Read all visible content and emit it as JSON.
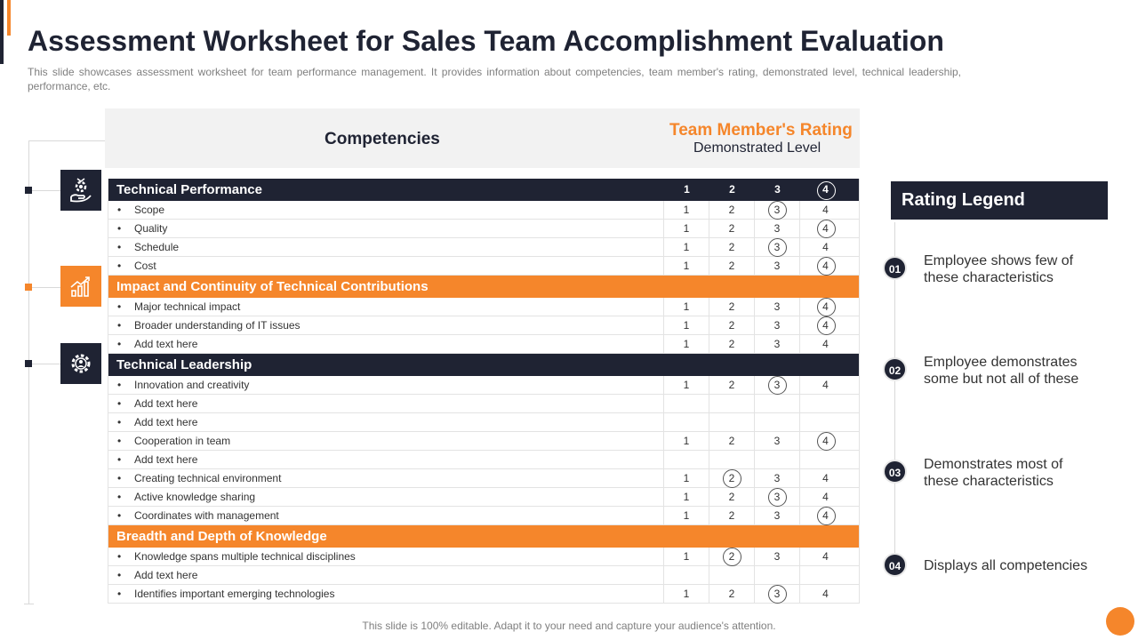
{
  "title": "Assessment Worksheet for Sales Team Accomplishment Evaluation",
  "subtitle": "This slide showcases assessment worksheet for team performance management. It provides information about competencies, team member's rating, demonstrated level, technical leadership, performance, etc.",
  "header": {
    "competencies": "Competencies",
    "rating": "Team Member's Rating",
    "level": "Demonstrated Level"
  },
  "bullet": "•",
  "sections": [
    {
      "title": "Technical Performance",
      "scores": [
        "1",
        "2",
        "3",
        "4"
      ],
      "circled": 4,
      "color": "dark",
      "rows": [
        {
          "label": "Scope",
          "scores": [
            "1",
            "2",
            "3",
            "4"
          ],
          "circled": 3
        },
        {
          "label": "Quality",
          "scores": [
            "1",
            "2",
            "3",
            "4"
          ],
          "circled": 4
        },
        {
          "label": "Schedule",
          "scores": [
            "1",
            "2",
            "3",
            "4"
          ],
          "circled": 3
        },
        {
          "label": "Cost",
          "scores": [
            "1",
            "2",
            "3",
            "4"
          ],
          "circled": 4
        }
      ]
    },
    {
      "title": "Impact and Continuity of Technical Contributions",
      "scores": [
        "",
        "",
        "",
        ""
      ],
      "circled": 0,
      "color": "orange",
      "rows": [
        {
          "label": "Major technical impact",
          "scores": [
            "1",
            "2",
            "3",
            "4"
          ],
          "circled": 4
        },
        {
          "label": "Broader understanding of IT issues",
          "scores": [
            "1",
            "2",
            "3",
            "4"
          ],
          "circled": 4
        },
        {
          "label": "Add text here",
          "scores": [
            "1",
            "2",
            "3",
            "4"
          ],
          "circled": 0
        }
      ]
    },
    {
      "title": "Technical Leadership",
      "scores": [
        "",
        "",
        "",
        ""
      ],
      "circled": 0,
      "color": "dark",
      "rows": [
        {
          "label": "Innovation and creativity",
          "scores": [
            "1",
            "2",
            "3",
            "4"
          ],
          "circled": 3
        },
        {
          "label": "Add text here",
          "scores": [
            "",
            "",
            "",
            ""
          ],
          "circled": 0
        },
        {
          "label": "Add text here",
          "scores": [
            "",
            "",
            "",
            ""
          ],
          "circled": 0
        },
        {
          "label": "Cooperation in team",
          "scores": [
            "1",
            "2",
            "3",
            "4"
          ],
          "circled": 4
        },
        {
          "label": "Add text here",
          "scores": [
            "",
            "",
            "",
            ""
          ],
          "circled": 0
        },
        {
          "label": "Creating technical environment",
          "scores": [
            "1",
            "2",
            "3",
            "4"
          ],
          "circled": 2
        },
        {
          "label": "Active  knowledge sharing",
          "scores": [
            "1",
            "2",
            "3",
            "4"
          ],
          "circled": 3
        },
        {
          "label": "Coordinates with management",
          "scores": [
            "1",
            "2",
            "3",
            "4"
          ],
          "circled": 4
        }
      ]
    },
    {
      "title": "Breadth and Depth of Knowledge",
      "scores": [
        "",
        "",
        "",
        ""
      ],
      "circled": 0,
      "color": "orange",
      "rows": [
        {
          "label": "Knowledge spans multiple technical disciplines",
          "scores": [
            "1",
            "2",
            "3",
            "4"
          ],
          "circled": 2
        },
        {
          "label": "Add text here",
          "scores": [
            "",
            "",
            "",
            ""
          ],
          "circled": 0
        },
        {
          "label": "Identifies important emerging technologies",
          "scores": [
            "1",
            "2",
            "3",
            "4"
          ],
          "circled": 3
        }
      ]
    }
  ],
  "legend": {
    "title": "Rating Legend",
    "items": [
      {
        "num": "01",
        "text": "Employee shows few of these characteristics"
      },
      {
        "num": "02",
        "text": "Employee demonstrates some but not all of these"
      },
      {
        "num": "03",
        "text": "Demonstrates most of these characteristics"
      },
      {
        "num": "04",
        "text": "Displays all competencies"
      }
    ]
  },
  "icons": [
    "hand-gear-icon",
    "growth-chart-icon",
    "gear-person-icon"
  ],
  "colors": {
    "dark": "#1f2333",
    "orange": "#f5862b"
  },
  "footer": "This slide is 100% editable. Adapt it to your need and capture your audience's attention."
}
